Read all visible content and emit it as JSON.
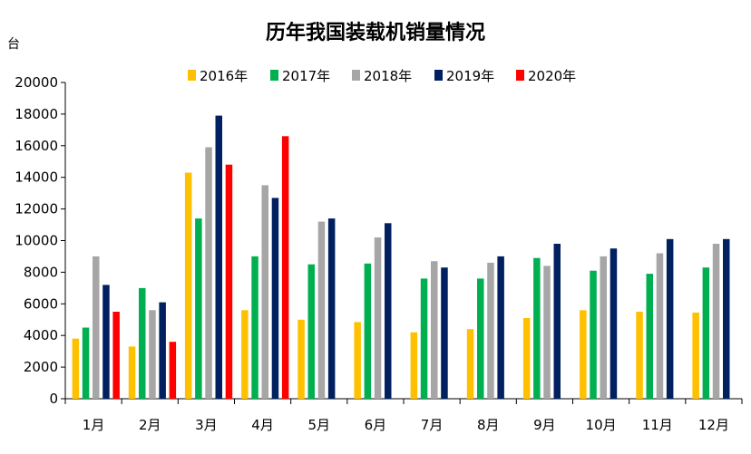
{
  "chart_data": {
    "type": "bar",
    "title": "历年我国装载机销量情况",
    "ylabel": "台",
    "xlabel": "",
    "ylim": [
      0,
      20000
    ],
    "yticks": [
      "0",
      "2000",
      "4000",
      "6000",
      "8000",
      "10000",
      "12000",
      "14000",
      "16000",
      "18000",
      "20000"
    ],
    "legend_position": "top",
    "grid": false,
    "categories": [
      "1月",
      "2月",
      "3月",
      "4月",
      "5月",
      "6月",
      "7月",
      "8月",
      "9月",
      "10月",
      "11月",
      "12月"
    ],
    "series": [
      {
        "name": "2016年",
        "color": "#FFC000",
        "values": [
          3800,
          3300,
          14300,
          5600,
          5000,
          4850,
          4200,
          4400,
          5100,
          5600,
          5500,
          5450
        ]
      },
      {
        "name": "2017年",
        "color": "#00B050",
        "values": [
          4500,
          7000,
          11400,
          9000,
          8500,
          8550,
          7600,
          7600,
          8900,
          8100,
          7900,
          8300
        ]
      },
      {
        "name": "2018年",
        "color": "#A6A6A6",
        "values": [
          9000,
          5600,
          15900,
          13500,
          11200,
          10200,
          8700,
          8600,
          8400,
          9000,
          9200,
          9800
        ]
      },
      {
        "name": "2019年",
        "color": "#002060",
        "values": [
          7200,
          6100,
          17900,
          12700,
          11400,
          11100,
          8300,
          9000,
          9800,
          9500,
          10100,
          10100
        ]
      },
      {
        "name": "2020年",
        "color": "#FF0000",
        "values": [
          5500,
          3600,
          14800,
          16600,
          null,
          null,
          null,
          null,
          null,
          null,
          null,
          null
        ]
      }
    ]
  }
}
